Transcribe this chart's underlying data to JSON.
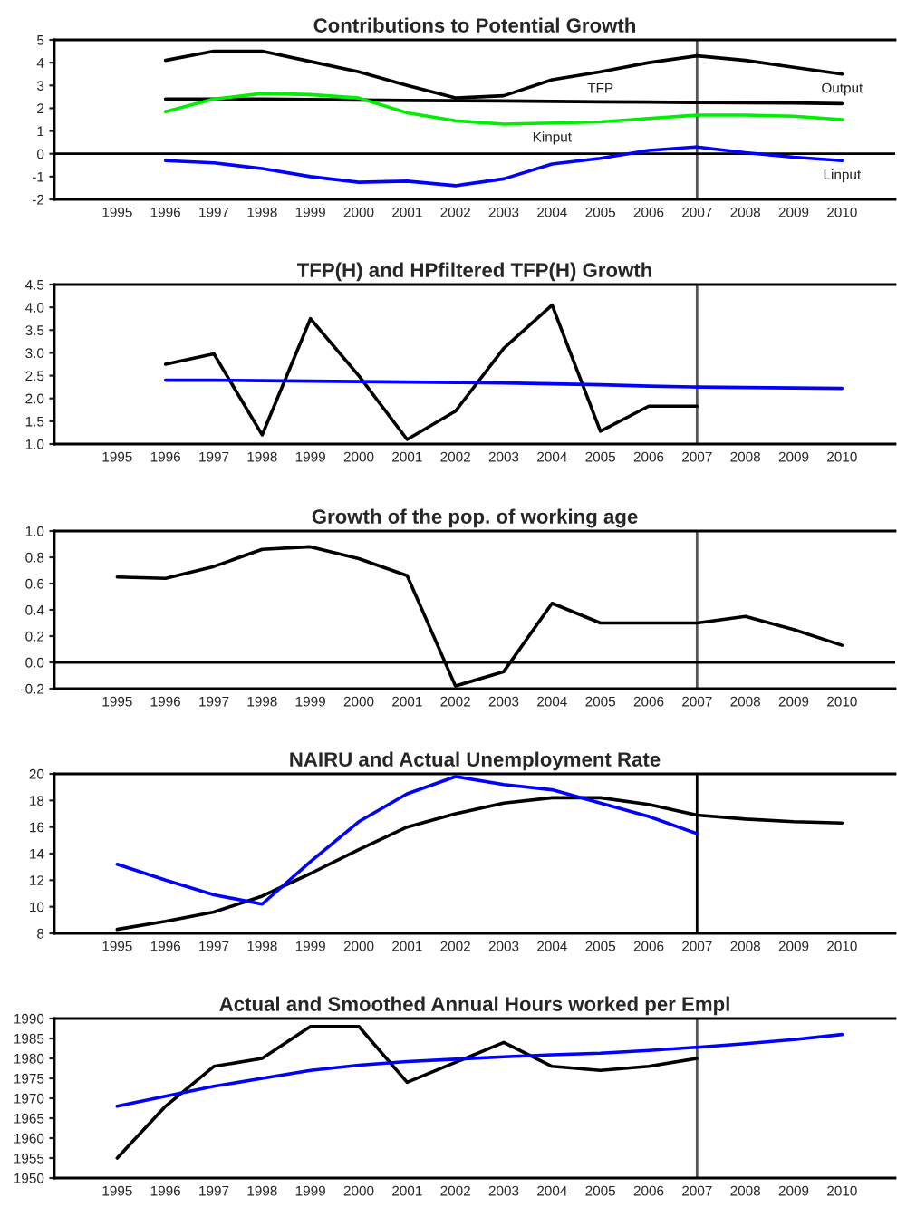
{
  "chart_data": [
    {
      "type": "line",
      "title": "Contributions to Potential Growth",
      "xlim": [
        1993.7,
        2011.1
      ],
      "xticks": [
        1995,
        1996,
        1997,
        1998,
        1999,
        2000,
        2001,
        2002,
        2003,
        2004,
        2005,
        2006,
        2007,
        2008,
        2009,
        2010
      ],
      "ylim": [
        -2,
        5
      ],
      "yticks": [
        -2,
        -1,
        0,
        1,
        2,
        3,
        4,
        5
      ],
      "grid": false,
      "legend": false,
      "ref_lines": [
        {
          "axis": "x",
          "value": 2007,
          "color": "#555555"
        },
        {
          "axis": "y",
          "value": 0,
          "color": "#000000"
        }
      ],
      "series": [
        {
          "name": "Output",
          "color": "#000000",
          "x": [
            1996,
            1997,
            1998,
            1999,
            2000,
            2001,
            2002,
            2003,
            2004,
            2005,
            2006,
            2007,
            2008,
            2009,
            2010
          ],
          "values": [
            4.1,
            4.5,
            4.5,
            4.05,
            3.6,
            3.0,
            2.45,
            2.55,
            3.25,
            3.6,
            4.0,
            4.3,
            4.1,
            3.8,
            3.5
          ]
        },
        {
          "name": "TFP",
          "color": "#000000",
          "x": [
            1996,
            1997,
            1998,
            1999,
            2000,
            2001,
            2002,
            2003,
            2004,
            2005,
            2006,
            2007,
            2008,
            2009,
            2010
          ],
          "values": [
            2.4,
            2.4,
            2.4,
            2.38,
            2.36,
            2.34,
            2.33,
            2.32,
            2.3,
            2.28,
            2.27,
            2.25,
            2.24,
            2.23,
            2.2
          ]
        },
        {
          "name": "Kinput",
          "color": "#00ee00",
          "x": [
            1996,
            1997,
            1998,
            1999,
            2000,
            2001,
            2002,
            2003,
            2004,
            2005,
            2006,
            2007,
            2008,
            2009,
            2010
          ],
          "values": [
            1.85,
            2.4,
            2.65,
            2.6,
            2.45,
            1.8,
            1.45,
            1.3,
            1.35,
            1.4,
            1.55,
            1.7,
            1.7,
            1.65,
            1.5
          ]
        },
        {
          "name": "Linput",
          "color": "#0000ff",
          "x": [
            1996,
            1997,
            1998,
            1999,
            2000,
            2001,
            2002,
            2003,
            2004,
            2005,
            2006,
            2007,
            2008,
            2009,
            2010
          ],
          "values": [
            -0.3,
            -0.4,
            -0.65,
            -1.0,
            -1.25,
            -1.2,
            -1.4,
            -1.1,
            -0.45,
            -0.2,
            0.15,
            0.3,
            0.05,
            -0.15,
            -0.3
          ]
        }
      ]
    },
    {
      "type": "line",
      "title": "TFP(H) and HPfiltered TFP(H) Growth",
      "xlim": [
        1993.7,
        2011.1
      ],
      "xticks": [
        1995,
        1996,
        1997,
        1998,
        1999,
        2000,
        2001,
        2002,
        2003,
        2004,
        2005,
        2006,
        2007,
        2008,
        2009,
        2010
      ],
      "ylim": [
        1.0,
        4.5
      ],
      "yticks": [
        {
          "value": 1.0,
          "label": "1.0"
        },
        {
          "value": 1.5,
          "label": "1.5"
        },
        {
          "value": 2.0,
          "label": "2.0"
        },
        {
          "value": 2.5,
          "label": "2.5"
        },
        {
          "value": 3.0,
          "label": "3.0"
        },
        {
          "value": 3.5,
          "label": "3.5"
        },
        {
          "value": 4.0,
          "label": "4.0"
        },
        {
          "value": 4.5,
          "label": "4.5"
        }
      ],
      "grid": false,
      "legend": false,
      "ref_lines": [
        {
          "axis": "x",
          "value": 2007,
          "color": "#555555"
        }
      ],
      "series": [
        {
          "color": "#000000",
          "x": [
            1996,
            1997,
            1998,
            1999,
            2000,
            2001,
            2002,
            2003,
            2004,
            2005,
            2006,
            2007
          ],
          "values": [
            2.75,
            2.98,
            1.2,
            3.75,
            2.5,
            1.1,
            1.72,
            3.1,
            4.05,
            1.28,
            1.83,
            1.83
          ]
        },
        {
          "color": "#0000ff",
          "x": [
            1996,
            1997,
            1998,
            1999,
            2000,
            2001,
            2002,
            2003,
            2004,
            2005,
            2006,
            2007,
            2008,
            2009,
            2010
          ],
          "values": [
            2.4,
            2.4,
            2.39,
            2.38,
            2.37,
            2.36,
            2.35,
            2.34,
            2.32,
            2.3,
            2.27,
            2.25,
            2.24,
            2.23,
            2.22
          ]
        }
      ]
    },
    {
      "type": "line",
      "title": "Growth of the pop. of working age",
      "xlim": [
        1993.7,
        2011.1
      ],
      "xticks": [
        1995,
        1996,
        1997,
        1998,
        1999,
        2000,
        2001,
        2002,
        2003,
        2004,
        2005,
        2006,
        2007,
        2008,
        2009,
        2010
      ],
      "ylim": [
        -0.2,
        1.0
      ],
      "yticks": [
        {
          "value": -0.2,
          "label": "-0.2"
        },
        {
          "value": 0.0,
          "label": "0.0"
        },
        {
          "value": 0.2,
          "label": "0.2"
        },
        {
          "value": 0.4,
          "label": "0.4"
        },
        {
          "value": 0.6,
          "label": "0.6"
        },
        {
          "value": 0.8,
          "label": "0.8"
        },
        {
          "value": 1.0,
          "label": "1.0"
        }
      ],
      "grid": false,
      "legend": false,
      "ref_lines": [
        {
          "axis": "x",
          "value": 2007,
          "color": "#555555"
        },
        {
          "axis": "y",
          "value": 0,
          "color": "#000000"
        }
      ],
      "series": [
        {
          "color": "#000000",
          "x": [
            1995,
            1996,
            1997,
            1998,
            1999,
            2000,
            2001,
            2002,
            2003,
            2004,
            2005,
            2006,
            2007,
            2008,
            2009,
            2010
          ],
          "values": [
            0.65,
            0.64,
            0.73,
            0.86,
            0.88,
            0.79,
            0.66,
            -0.18,
            -0.07,
            0.45,
            0.3,
            0.3,
            0.3,
            0.35,
            0.25,
            0.13
          ]
        }
      ]
    },
    {
      "type": "line",
      "title": "NAIRU and Actual Unemployment Rate",
      "xlim": [
        1993.7,
        2011.1
      ],
      "xticks": [
        1995,
        1996,
        1997,
        1998,
        1999,
        2000,
        2001,
        2002,
        2003,
        2004,
        2005,
        2006,
        2007,
        2008,
        2009,
        2010
      ],
      "ylim": [
        8,
        20
      ],
      "yticks": [
        8,
        10,
        12,
        14,
        16,
        18,
        20
      ],
      "grid": false,
      "legend": false,
      "ref_lines": [
        {
          "axis": "x",
          "value": 2007,
          "color": "#000000"
        }
      ],
      "series": [
        {
          "color": "#000000",
          "x": [
            1995,
            1996,
            1997,
            1998,
            1999,
            2000,
            2001,
            2002,
            2003,
            2004,
            2005,
            2006,
            2007,
            2008,
            2009,
            2010
          ],
          "values": [
            8.3,
            8.9,
            9.6,
            10.8,
            12.5,
            14.3,
            16.0,
            17.0,
            17.8,
            18.2,
            18.2,
            17.7,
            16.9,
            16.6,
            16.4,
            16.3
          ]
        },
        {
          "color": "#0000ff",
          "x": [
            1995,
            1996,
            1997,
            1998,
            1999,
            2000,
            2001,
            2002,
            2003,
            2004,
            2005,
            2006,
            2007
          ],
          "values": [
            13.2,
            12.0,
            10.9,
            10.2,
            13.4,
            16.4,
            18.5,
            19.8,
            19.2,
            18.8,
            17.8,
            16.8,
            15.5
          ]
        }
      ]
    },
    {
      "type": "line",
      "title": "Actual and Smoothed Annual Hours worked per Empl",
      "xlim": [
        1993.7,
        2011.1
      ],
      "xticks": [
        1995,
        1996,
        1997,
        1998,
        1999,
        2000,
        2001,
        2002,
        2003,
        2004,
        2005,
        2006,
        2007,
        2008,
        2009,
        2010
      ],
      "ylim": [
        1950,
        1990
      ],
      "yticks": [
        1950,
        1955,
        1960,
        1965,
        1970,
        1975,
        1980,
        1985,
        1990
      ],
      "grid": false,
      "legend": false,
      "ref_lines": [
        {
          "axis": "x",
          "value": 2007,
          "color": "#555555"
        }
      ],
      "series": [
        {
          "color": "#000000",
          "x": [
            1995,
            1996,
            1997,
            1998,
            1999,
            2000,
            2001,
            2002,
            2003,
            2004,
            2005,
            2006,
            2007
          ],
          "values": [
            1955,
            1968,
            1978,
            1980,
            1988,
            1988,
            1974,
            1979,
            1984,
            1978,
            1977,
            1978,
            1980
          ]
        },
        {
          "color": "#0000ff",
          "x": [
            1995,
            1996,
            1997,
            1998,
            1999,
            2000,
            2001,
            2002,
            2003,
            2004,
            2005,
            2006,
            2007,
            2008,
            2009,
            2010
          ],
          "values": [
            1968,
            1970.5,
            1973,
            1975,
            1977,
            1978.3,
            1979.2,
            1979.8,
            1980.4,
            1980.9,
            1981.3,
            1982,
            1982.8,
            1983.7,
            1984.7,
            1986
          ]
        }
      ]
    }
  ]
}
